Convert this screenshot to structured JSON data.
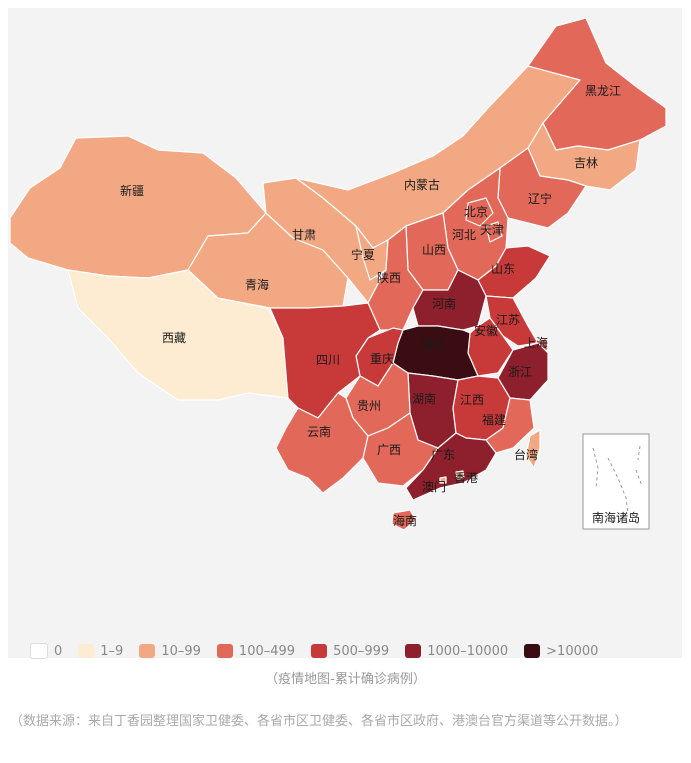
{
  "colors": {
    "c0": "#ffffff",
    "c1": "#fdecd2",
    "c2": "#f2a883",
    "c3": "#e2685a",
    "c4": "#c8393a",
    "c5": "#8e1f2c",
    "c6": "#3a0d12",
    "border": "#ffffff",
    "background": "#f3f3f3"
  },
  "legend": [
    {
      "label": "0",
      "color": "#ffffff"
    },
    {
      "label": "1–9",
      "color": "#fdecd2"
    },
    {
      "label": "10–99",
      "color": "#f2a883"
    },
    {
      "label": "100–499",
      "color": "#e2685a"
    },
    {
      "label": "500–999",
      "color": "#c8393a"
    },
    {
      "label": "1000–10000",
      "color": "#8e1f2c"
    },
    {
      "label": ">10000",
      "color": "#3a0d12"
    }
  ],
  "provinces": {
    "xinjiang": {
      "name": "新疆",
      "level": "10–99"
    },
    "xizang": {
      "name": "西藏",
      "level": "1–9"
    },
    "qinghai": {
      "name": "青海",
      "level": "10–99"
    },
    "gansu": {
      "name": "甘肃",
      "level": "10–99"
    },
    "neimenggu": {
      "name": "内蒙古",
      "level": "10–99"
    },
    "heilongjiang": {
      "name": "黑龙江",
      "level": "100–499"
    },
    "jilin": {
      "name": "吉林",
      "level": "10–99"
    },
    "liaoning": {
      "name": "辽宁",
      "level": "100–499"
    },
    "beijing": {
      "name": "北京",
      "level": "100–499"
    },
    "tianjin": {
      "name": "天津",
      "level": "100–499"
    },
    "hebei": {
      "name": "河北",
      "level": "100–499"
    },
    "shanxi": {
      "name": "山西",
      "level": "100–499"
    },
    "ningxia": {
      "name": "宁夏",
      "level": "10–99"
    },
    "shaanxi": {
      "name": "陕西",
      "level": "100–499"
    },
    "shandong": {
      "name": "山东",
      "level": "500–999"
    },
    "henan": {
      "name": "河南",
      "level": "1000–10000"
    },
    "jiangsu": {
      "name": "江苏",
      "level": "500–999"
    },
    "anhui": {
      "name": "安徽",
      "level": "500–999"
    },
    "shanghai": {
      "name": "上海",
      "level": "100–499"
    },
    "hubei": {
      "name": "湖北",
      "level": ">10000"
    },
    "sichuan": {
      "name": "四川",
      "level": "500–999"
    },
    "chongqing": {
      "name": "重庆",
      "level": "500–999"
    },
    "zhejiang": {
      "name": "浙江",
      "level": "1000–10000"
    },
    "hunan": {
      "name": "湖南",
      "level": "1000–10000"
    },
    "jiangxi": {
      "name": "江西",
      "level": "500–999"
    },
    "guizhou": {
      "name": "贵州",
      "level": "100–499"
    },
    "fujian": {
      "name": "福建",
      "level": "100–499"
    },
    "yunnan": {
      "name": "云南",
      "level": "100–499"
    },
    "guangxi": {
      "name": "广西",
      "level": "100–499"
    },
    "guangdong": {
      "name": "广东",
      "level": "1000–10000"
    },
    "taiwan": {
      "name": "台湾",
      "level": "10–99"
    },
    "aomen": {
      "name": "澳门",
      "level": "10–99"
    },
    "xianggang": {
      "name": "香港",
      "level": "10–99"
    },
    "hainan": {
      "name": "海南",
      "level": "100–499"
    }
  },
  "inset_label": "南海诸岛",
  "caption": "（疫情地图-累计确诊病例）",
  "source_note": "（数据来源：来自丁香园整理国家卫健委、各省市区卫健委、各省市区政府、港澳台官方渠道等公开数据。）"
}
